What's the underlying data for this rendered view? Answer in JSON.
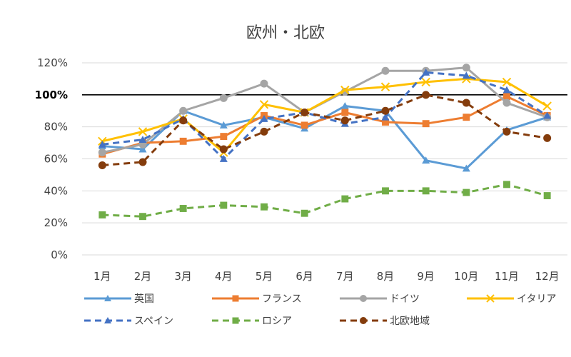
{
  "chart_data": {
    "type": "line",
    "title": "欧州・北欧",
    "xlabel": "",
    "ylabel": "",
    "categories": [
      "1月",
      "2月",
      "3月",
      "4月",
      "5月",
      "6月",
      "7月",
      "8月",
      "9月",
      "10月",
      "11月",
      "12月"
    ],
    "ylim": [
      0,
      120
    ],
    "yticks": [
      "0%",
      "20%",
      "40%",
      "60%",
      "80%",
      "100%",
      "120%"
    ],
    "reference_line": {
      "value": 100,
      "label": "100%",
      "color": "#000000"
    },
    "grid": true,
    "legend_position": "bottom",
    "series": [
      {
        "name": "英国",
        "color": "#5b9bd5",
        "marker": "triangle",
        "dashed": false,
        "values": [
          68,
          66,
          90,
          81,
          86,
          79,
          93,
          90,
          59,
          54,
          78,
          86
        ]
      },
      {
        "name": "フランス",
        "color": "#ed7d31",
        "marker": "square",
        "dashed": false,
        "values": [
          63,
          70,
          71,
          74,
          87,
          81,
          89,
          83,
          82,
          86,
          99,
          87
        ]
      },
      {
        "name": "ドイツ",
        "color": "#a5a5a5",
        "marker": "circle",
        "dashed": false,
        "values": [
          64,
          69,
          90,
          98,
          107,
          89,
          102,
          115,
          115,
          117,
          95,
          86
        ]
      },
      {
        "name": "イタリア",
        "color": "#ffc000",
        "marker": "x",
        "dashed": false,
        "values": [
          71,
          77,
          85,
          64,
          94,
          89,
          103,
          105,
          108,
          110,
          108,
          93
        ]
      },
      {
        "name": "スペイン",
        "color": "#4472c4",
        "marker": "triangle",
        "dashed": true,
        "values": [
          69,
          72,
          85,
          60,
          85,
          89,
          82,
          86,
          114,
          112,
          103,
          87
        ]
      },
      {
        "name": "ロシア",
        "color": "#70ad47",
        "marker": "square",
        "dashed": true,
        "values": [
          25,
          24,
          29,
          31,
          30,
          26,
          35,
          40,
          40,
          39,
          44,
          37
        ]
      },
      {
        "name": "北欧地域",
        "color": "#843c0c",
        "marker": "circle",
        "dashed": true,
        "values": [
          56,
          58,
          84,
          66,
          77,
          89,
          84,
          90,
          100,
          95,
          77,
          73
        ]
      }
    ]
  }
}
